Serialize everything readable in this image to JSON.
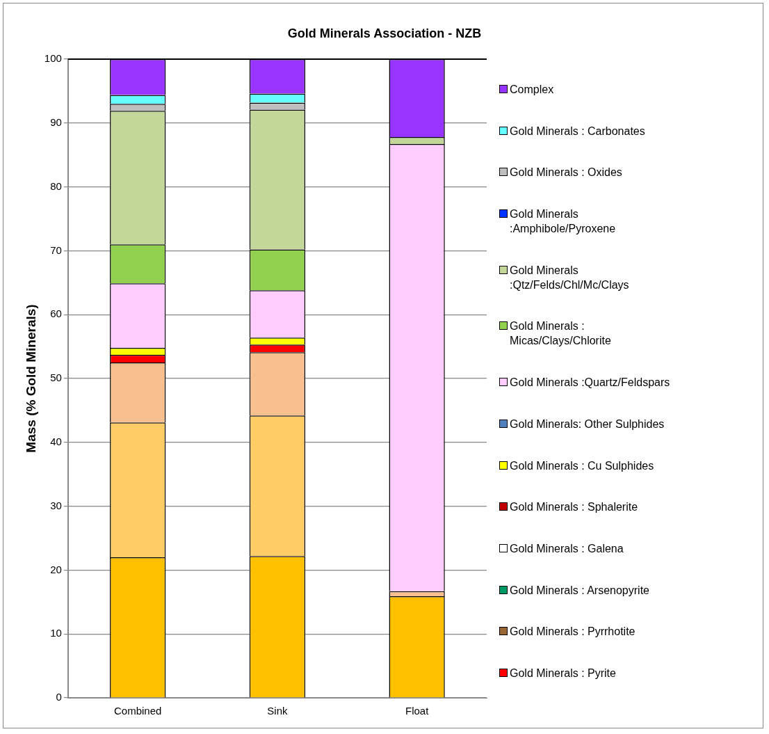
{
  "chart_data": {
    "type": "bar",
    "title": "Gold Minerals Association - NZB",
    "ylabel": "Mass (% Gold Minerals)",
    "categories": [
      "Combined",
      "Sink",
      "Float"
    ],
    "stacked": true,
    "ylim": [
      0,
      100
    ],
    "yticks": [
      0,
      10,
      20,
      30,
      40,
      50,
      60,
      70,
      80,
      90,
      100
    ],
    "grid": "y",
    "legend": "right",
    "series": [
      {
        "color": "#ffc000",
        "values": [
          22.0,
          22.2,
          15.9
        ]
      },
      {
        "color": "#ffcc66",
        "values": [
          21.1,
          22.0,
          0
        ]
      },
      {
        "color": "#f8bf8f",
        "values": [
          9.4,
          9.9,
          0.8
        ]
      },
      {
        "name": "Gold Minerals : Pyrite",
        "color": "#ff0000",
        "values": [
          1.2,
          1.2,
          0
        ]
      },
      {
        "name": "Gold Minerals : Pyrrhotite",
        "color": "#996633",
        "values": [
          0,
          0,
          0
        ]
      },
      {
        "name": "Gold Minerals : Arsenopyrite",
        "color": "#009966",
        "values": [
          0,
          0,
          0
        ]
      },
      {
        "name": "Gold Minerals : Galena",
        "color": "#ffffff",
        "values": [
          0,
          0,
          0
        ]
      },
      {
        "name": "Gold Minerals : Sphalerite",
        "color": "#c00000",
        "values": [
          0,
          0,
          0
        ]
      },
      {
        "name": "Gold Minerals : Cu Sulphides",
        "color": "#ffff00",
        "values": [
          1.1,
          1.1,
          0
        ]
      },
      {
        "name": "Gold Minerals: Other Sulphides",
        "color": "#4f81bd",
        "values": [
          0,
          0,
          0
        ]
      },
      {
        "name": "Gold Minerals :Quartz/Feldspars",
        "color": "#ffccff",
        "values": [
          10.1,
          7.4,
          70.0
        ]
      },
      {
        "name": "Gold Minerals : Micas/Clays/Chlorite",
        "color": "#92d050",
        "values": [
          6.1,
          6.4,
          0
        ]
      },
      {
        "name": "Gold Minerals :Qtz/Felds/Chl/Mc/Clays",
        "color": "#c4d79b",
        "values": [
          20.9,
          21.9,
          1.1
        ]
      },
      {
        "name": "Gold Minerals :Amphibole/Pyroxene",
        "color": "#0033ff",
        "values": [
          0,
          0,
          0
        ]
      },
      {
        "name": "Gold Minerals : Oxides",
        "color": "#bfbfbf",
        "values": [
          1.1,
          1.1,
          0
        ]
      },
      {
        "name": "Gold Minerals : Carbonates",
        "color": "#66ffff",
        "values": [
          1.4,
          1.4,
          0
        ]
      },
      {
        "name": "Complex",
        "color": "#9933ff",
        "values": [
          5.6,
          5.4,
          12.2
        ]
      }
    ]
  }
}
